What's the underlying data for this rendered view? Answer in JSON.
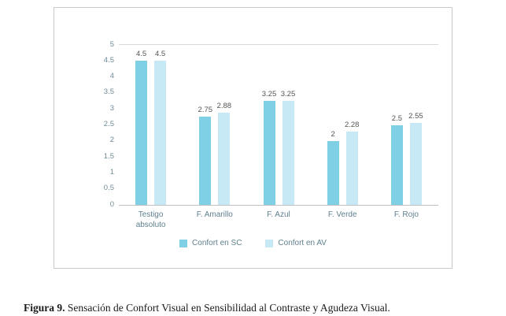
{
  "chart_data": {
    "type": "bar",
    "title": "",
    "categories": [
      "Testigo absoluto",
      "F. Amarillo",
      "F. Azul",
      "F. Verde",
      "F. Rojo"
    ],
    "series": [
      {
        "name": "Confort en SC",
        "color": "#7fd0e4",
        "values": [
          4.5,
          2.75,
          3.25,
          2,
          2.5
        ],
        "labels": [
          "4.5",
          "2.75",
          "3.25",
          "2",
          "2.5"
        ]
      },
      {
        "name": "Confort en AV",
        "color": "#c6e9f5",
        "values": [
          4.5,
          2.88,
          3.25,
          2.28,
          2.55
        ],
        "labels": [
          "4.5",
          "2.88",
          "3.25",
          "2.28",
          "2.55"
        ]
      }
    ],
    "y_ticks": [
      "0",
      "0.5",
      "1",
      "1.5",
      "2",
      "2.5",
      "3",
      "3.5",
      "4",
      "4.5",
      "5"
    ],
    "ylim": [
      0,
      5
    ],
    "grid": "top-line-only",
    "legend_position": "bottom"
  },
  "caption": {
    "label": "Figura 9.",
    "text": " Sensación de Confort Visual en Sensibilidad al Contraste y Agudeza Visual."
  }
}
